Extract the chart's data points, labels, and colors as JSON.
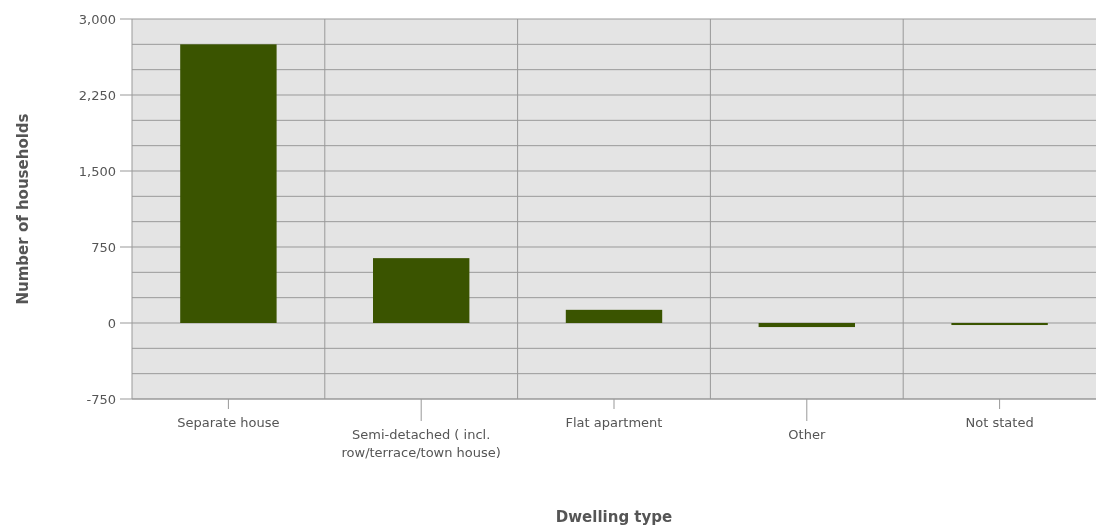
{
  "chart_data": {
    "type": "bar",
    "xlabel": "Dwelling type",
    "ylabel": "Number of households",
    "categories": [
      "Separate house",
      "Semi-detached ( incl. row/terrace/town house)",
      "Flat apartment",
      "Other",
      "Not stated"
    ],
    "values": [
      2750,
      640,
      130,
      -40,
      -20
    ],
    "color": "#3a5400",
    "ylim": [
      -750,
      3000
    ],
    "yticks": [
      {
        "value": -750,
        "label": "-750"
      },
      {
        "value": -500,
        "label": null
      },
      {
        "value": -250,
        "label": null
      },
      0,
      {
        "value": 250,
        "label": null
      },
      {
        "value": 500,
        "label": null
      },
      {
        "value": 750,
        "label": "750"
      },
      {
        "value": 1000,
        "label": null
      },
      {
        "value": 1250,
        "label": null
      },
      {
        "value": 1500,
        "label": "1,500"
      },
      {
        "value": 1750,
        "label": null
      },
      {
        "value": 2000,
        "label": null
      },
      {
        "value": 2250,
        "label": "2,250"
      },
      {
        "value": 2500,
        "label": null
      },
      {
        "value": 2750,
        "label": null
      },
      {
        "value": 3000,
        "label": "3,000"
      }
    ],
    "grid": true
  }
}
